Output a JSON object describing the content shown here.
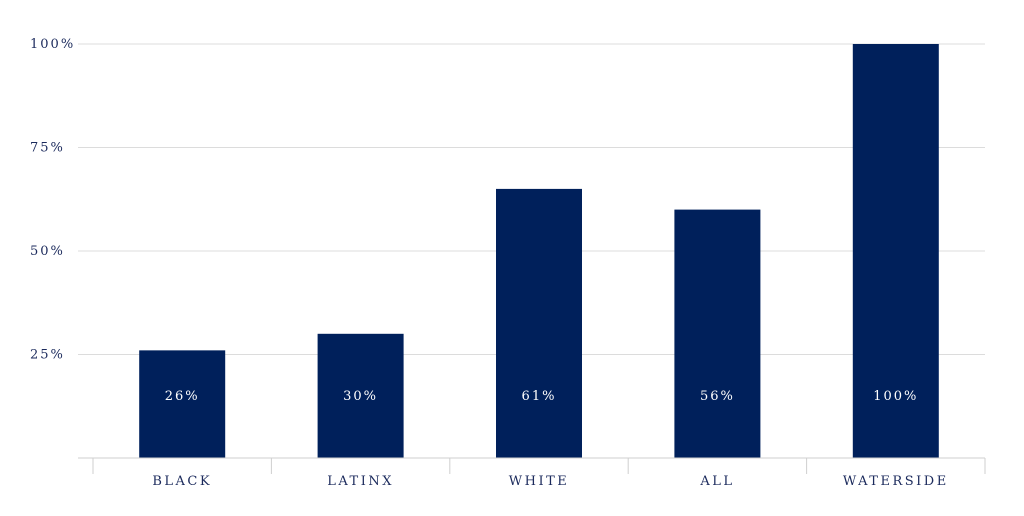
{
  "chart_data": {
    "type": "bar",
    "categories": [
      "BLACK",
      "LATINX",
      "WHITE",
      "ALL",
      "WATERSIDE"
    ],
    "values": [
      26,
      30,
      61,
      56,
      100
    ],
    "display_heights": [
      26,
      30,
      65,
      60,
      100
    ],
    "data_labels": [
      "26%",
      "30%",
      "61%",
      "56%",
      "100%"
    ],
    "yticks": [
      {
        "value": 25,
        "label": "25%"
      },
      {
        "value": 50,
        "label": "50%"
      },
      {
        "value": 75,
        "label": "75%"
      },
      {
        "value": 100,
        "label": "100%"
      }
    ],
    "ylim": [
      0,
      100
    ],
    "grid": true,
    "bar_color": "#00205b",
    "title": "",
    "xlabel": "",
    "ylabel": ""
  }
}
